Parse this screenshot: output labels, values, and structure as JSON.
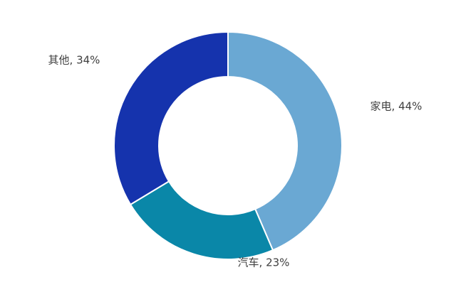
{
  "chart_data": {
    "type": "pie",
    "donut": true,
    "values": [
      44,
      23,
      34
    ],
    "value_labels": [
      "家电, 44%",
      "汽车, 23%",
      "其他, 34%"
    ],
    "colors": [
      "#6aa8d3",
      "#0a87a8",
      "#1533ad"
    ]
  }
}
